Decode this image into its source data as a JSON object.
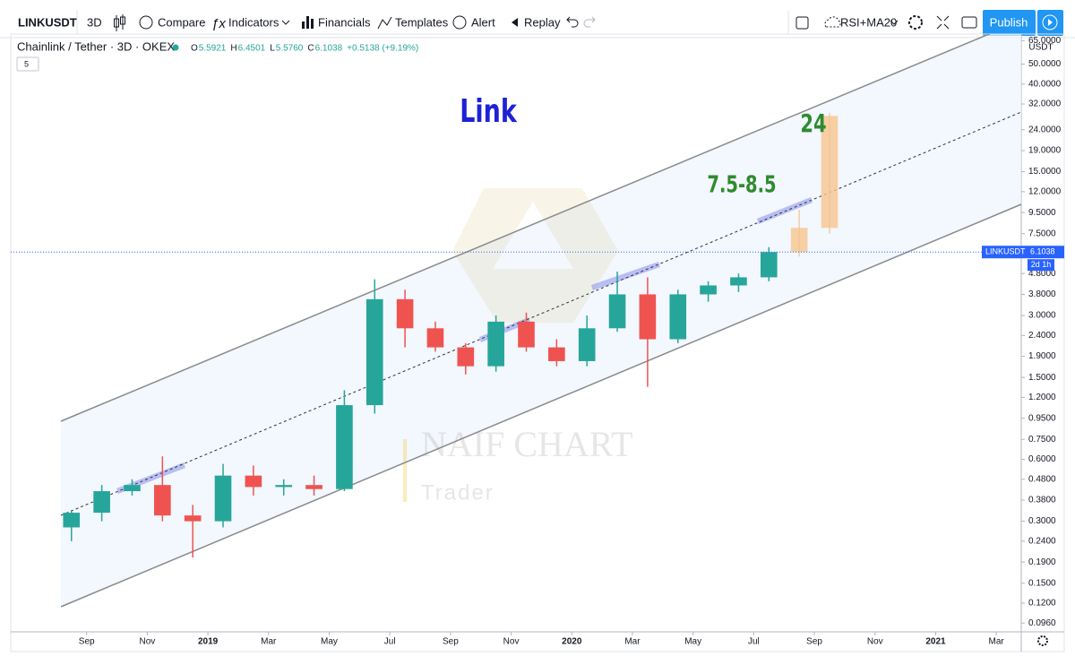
{
  "toolbar": {
    "symbol": "LINKUSDT",
    "interval": "3D",
    "items": [
      "Compare",
      "Indicators",
      "Financials",
      "Templates",
      "Alert",
      "Replay"
    ],
    "study": "RSI+MA20",
    "publish": "Publish"
  },
  "legend": {
    "title": "Chainlink / Tether · 3D · OKEX",
    "ohlc": [
      {
        "key": "O",
        "value": "5.5921"
      },
      {
        "key": "H",
        "value": "6.4501"
      },
      {
        "key": "L",
        "value": "5.5760"
      },
      {
        "key": "C",
        "value": "6.1038"
      }
    ],
    "change": "+0.5138 (+9.19%)",
    "count": "5"
  },
  "chart_data": {
    "type": "candlestick",
    "log_scale": true,
    "grid": false,
    "up_color": "#26a69a",
    "down_color": "#ef5350",
    "projection_color": "#f6c48f",
    "annotations": [
      {
        "text": "Link",
        "color": "#1e22d6"
      },
      {
        "text": "7.5-8.5",
        "color": "#2e8b2e"
      },
      {
        "text": "24",
        "color": "#2e8b2e"
      }
    ],
    "watermark": {
      "title": "NAIF CHART",
      "subtitle": "Trader"
    },
    "y_unit": "USDT",
    "price_tag": {
      "symbol": "LINKUSDT",
      "value": 6.1038,
      "countdown": "2d 1h"
    },
    "xlim": [
      "2018-07",
      "2021-04"
    ],
    "xticks": [
      {
        "value": "2018-09",
        "label": "Sep"
      },
      {
        "value": "2018-11",
        "label": "Nov"
      },
      {
        "value": "2019-01",
        "label": "2019"
      },
      {
        "value": "2019-03",
        "label": "Mar"
      },
      {
        "value": "2019-05",
        "label": "May"
      },
      {
        "value": "2019-07",
        "label": "Jul"
      },
      {
        "value": "2019-09",
        "label": "Sep"
      },
      {
        "value": "2019-11",
        "label": "Nov"
      },
      {
        "value": "2020-01",
        "label": "2020"
      },
      {
        "value": "2020-03",
        "label": "Mar"
      },
      {
        "value": "2020-05",
        "label": "May"
      },
      {
        "value": "2020-07",
        "label": "Jul"
      },
      {
        "value": "2020-09",
        "label": "Sep"
      },
      {
        "value": "2020-11",
        "label": "Nov"
      },
      {
        "value": "2021-01",
        "label": "2021"
      },
      {
        "value": "2021-03",
        "label": "Mar"
      }
    ],
    "ylim": [
      0.087,
      70
    ],
    "yticks": [
      {
        "value": 65,
        "label": "65.0000"
      },
      {
        "value": 50,
        "label": "50.0000"
      },
      {
        "value": 40,
        "label": "40.0000"
      },
      {
        "value": 32,
        "label": "32.0000"
      },
      {
        "value": 24,
        "label": "24.0000"
      },
      {
        "value": 19,
        "label": "19.0000"
      },
      {
        "value": 15,
        "label": "15.0000"
      },
      {
        "value": 12,
        "label": "12.0000"
      },
      {
        "value": 9.5,
        "label": "9.5000"
      },
      {
        "value": 7.5,
        "label": "7.5000"
      },
      {
        "value": 4.8,
        "label": "4.8000"
      },
      {
        "value": 3.8,
        "label": "3.8000"
      },
      {
        "value": 3,
        "label": "3.0000"
      },
      {
        "value": 2.4,
        "label": "2.4000"
      },
      {
        "value": 1.9,
        "label": "1.9000"
      },
      {
        "value": 1.5,
        "label": "1.5000"
      },
      {
        "value": 1.2,
        "label": "1.2000"
      },
      {
        "value": 0.95,
        "label": "0.9500"
      },
      {
        "value": 0.75,
        "label": "0.7500"
      },
      {
        "value": 0.6,
        "label": "0.6000"
      },
      {
        "value": 0.48,
        "label": "0.4800"
      },
      {
        "value": 0.38,
        "label": "0.3800"
      },
      {
        "value": 0.3,
        "label": "0.3000"
      },
      {
        "value": 0.24,
        "label": "0.2400"
      },
      {
        "value": 0.19,
        "label": "0.1900"
      },
      {
        "value": 0.15,
        "label": "0.1500"
      },
      {
        "value": 0.12,
        "label": "0.1200"
      },
      {
        "value": 0.096,
        "label": "0.0960"
      }
    ],
    "x": [
      "2018-08",
      "2018-09",
      "2018-10",
      "2018-11",
      "2018-12",
      "2019-01",
      "2019-02",
      "2019-03",
      "2019-04",
      "2019-05",
      "2019-06",
      "2019-07",
      "2019-08",
      "2019-09",
      "2019-10",
      "2019-11",
      "2019-12",
      "2020-01",
      "2020-02",
      "2020-03",
      "2020-04",
      "2020-05",
      "2020-06",
      "2020-07"
    ],
    "open": [
      0.28,
      0.33,
      0.42,
      0.45,
      0.32,
      0.3,
      0.5,
      0.44,
      0.45,
      0.43,
      1.1,
      3.6,
      2.6,
      2.1,
      1.7,
      2.8,
      2.1,
      1.8,
      2.6,
      3.8,
      2.3,
      3.8,
      4.2,
      4.6
    ],
    "high": [
      0.34,
      0.45,
      0.48,
      0.62,
      0.36,
      0.57,
      0.56,
      0.48,
      0.5,
      1.3,
      4.5,
      4.0,
      2.8,
      2.2,
      3.0,
      3.1,
      2.3,
      3.0,
      4.9,
      4.6,
      4.0,
      4.4,
      4.8,
      6.45
    ],
    "low": [
      0.24,
      0.3,
      0.4,
      0.3,
      0.2,
      0.28,
      0.4,
      0.4,
      0.4,
      0.42,
      1.0,
      2.1,
      2.0,
      1.55,
      1.6,
      2.0,
      1.7,
      1.7,
      2.5,
      1.35,
      2.2,
      3.5,
      3.9,
      4.4
    ],
    "close": [
      0.33,
      0.42,
      0.45,
      0.32,
      0.3,
      0.5,
      0.44,
      0.45,
      0.43,
      1.1,
      3.6,
      2.6,
      2.1,
      1.7,
      2.8,
      2.1,
      1.8,
      2.6,
      3.8,
      2.3,
      3.8,
      4.2,
      4.6,
      6.1038
    ],
    "projection": {
      "x": [
        "2020-08",
        "2020-09"
      ],
      "open": [
        6.1,
        8.0
      ],
      "high": [
        9.8,
        29
      ],
      "low": [
        5.8,
        7.5
      ],
      "close": [
        8.0,
        28
      ]
    }
  }
}
